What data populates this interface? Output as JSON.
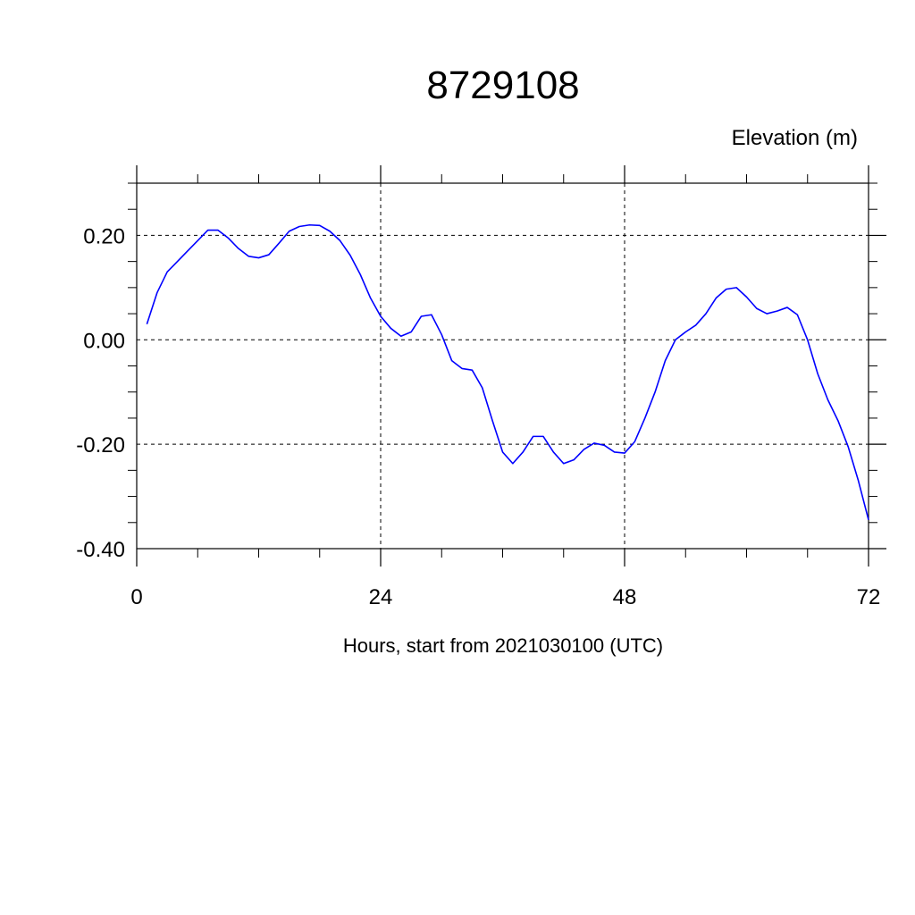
{
  "chart_data": {
    "type": "line",
    "title": "8729108",
    "ylabel": "Elevation (m)",
    "xlabel": "Hours, start from 2021030100 (UTC)",
    "xlim": [
      0,
      72
    ],
    "ylim": [
      -0.4,
      0.3
    ],
    "x_ticks": [
      0,
      24,
      48,
      72
    ],
    "x_tick_labels": [
      "0",
      "24",
      "48",
      "72"
    ],
    "y_ticks": [
      -0.4,
      -0.2,
      0.0,
      0.2
    ],
    "y_tick_labels": [
      "-0.40",
      "-0.20",
      "0.00",
      "0.20"
    ],
    "grid": "dashed",
    "line_color": "#0000ff",
    "series": [
      {
        "x": [
          1,
          2,
          3,
          4,
          5,
          6,
          7,
          8,
          9,
          10,
          11,
          12,
          13,
          14,
          15,
          16,
          17,
          18,
          19,
          20,
          21,
          22,
          23,
          24,
          25,
          26,
          27,
          28,
          29,
          30,
          31,
          32,
          33,
          34,
          35,
          36,
          37,
          38,
          39,
          40,
          41,
          42,
          43,
          44,
          45,
          46,
          47,
          48,
          49,
          50,
          51,
          52,
          53,
          54,
          55,
          56,
          57,
          58,
          59,
          60,
          61,
          62,
          63,
          64,
          65,
          66,
          67,
          68,
          69,
          70,
          71,
          72
        ],
        "values": [
          0.03,
          0.09,
          0.13,
          0.15,
          0.17,
          0.19,
          0.21,
          0.21,
          0.195,
          0.175,
          0.16,
          0.157,
          0.163,
          0.185,
          0.208,
          0.217,
          0.22,
          0.219,
          0.208,
          0.19,
          0.162,
          0.125,
          0.08,
          0.045,
          0.022,
          0.007,
          0.015,
          0.045,
          0.048,
          0.01,
          -0.04,
          -0.055,
          -0.058,
          -0.092,
          -0.155,
          -0.215,
          -0.237,
          -0.215,
          -0.185,
          -0.185,
          -0.215,
          -0.237,
          -0.23,
          -0.21,
          -0.198,
          -0.202,
          -0.215,
          -0.217,
          -0.195,
          -0.15,
          -0.1,
          -0.04,
          0.0,
          0.015,
          0.028,
          0.05,
          0.08,
          0.097,
          0.1,
          0.082,
          0.06,
          0.05,
          0.055,
          0.062,
          0.048,
          0.0,
          -0.065,
          -0.115,
          -0.155,
          -0.205,
          -0.27,
          -0.345
        ]
      }
    ]
  }
}
